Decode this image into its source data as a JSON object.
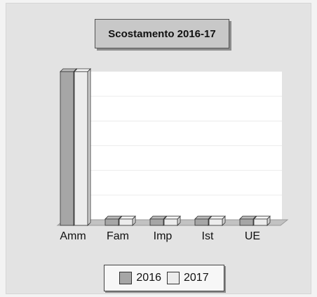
{
  "chart_data": {
    "type": "bar",
    "title": "Scostamento 2016-17",
    "categories": [
      "Amm",
      "Fam",
      "Imp",
      "Ist",
      "UE"
    ],
    "series": [
      {
        "name": "2016",
        "values": [
          100,
          0.5,
          0.5,
          0.5,
          0.5
        ],
        "color": "#a6a6a6"
      },
      {
        "name": "2017",
        "values": [
          100,
          0.5,
          0.5,
          0.5,
          0.5
        ],
        "color": "#ececec"
      }
    ],
    "ylim": [
      0,
      100
    ],
    "grid": true,
    "legend_position": "bottom",
    "xlabel": "",
    "ylabel": ""
  }
}
